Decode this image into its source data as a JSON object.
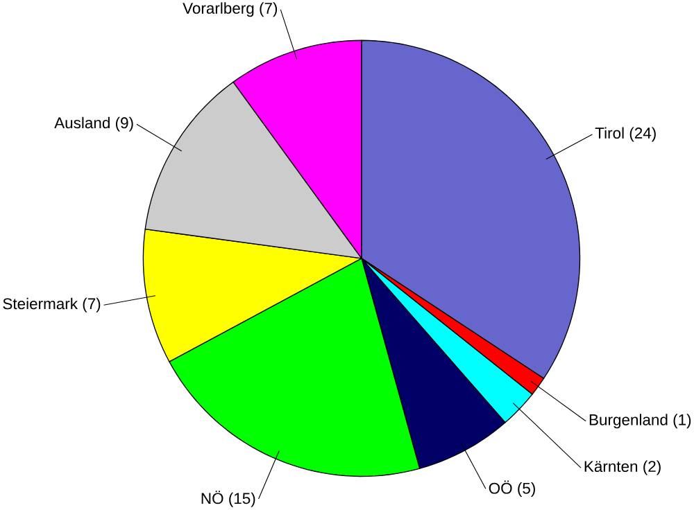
{
  "chart_data": {
    "type": "pie",
    "categories": [
      "Tirol (24)",
      "Burgenland (1)",
      "Kärnten (2)",
      "OÖ (5)",
      "NÖ (15)",
      "Steiermark (7)",
      "Ausland (9)",
      "Vorarlberg (7)"
    ],
    "values": [
      24,
      1,
      2,
      5,
      15,
      7,
      9,
      7
    ],
    "colors": [
      "#6666cc",
      "#ff0000",
      "#00ffff",
      "#000066",
      "#00ff00",
      "#ffff00",
      "#cccccc",
      "#ff00ff"
    ]
  }
}
